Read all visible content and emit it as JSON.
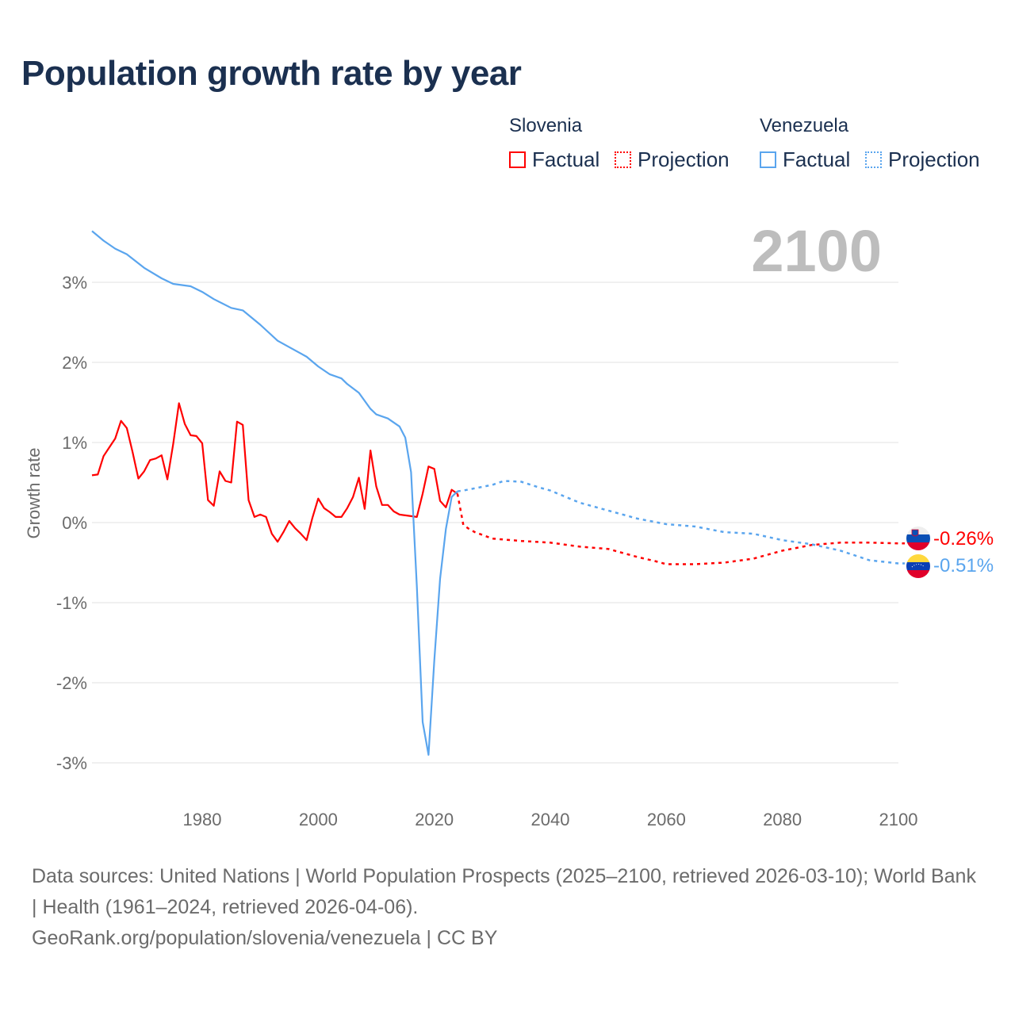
{
  "title": "Population growth rate by year",
  "legend": {
    "groups": [
      {
        "country": "Slovenia",
        "factual": "Factual",
        "projection": "Projection",
        "color": "#ff0000"
      },
      {
        "country": "Venezuela",
        "factual": "Factual",
        "projection": "Projection",
        "color": "#5aa5ee"
      }
    ]
  },
  "year_display": "2100",
  "footer": {
    "sources": "Data sources: United Nations | World Population Prospects (2025–2100, retrieved 2026-03-10); World Bank | Health (1961–2024, retrieved 2026-04-06).",
    "credit": "GeoRank.org/population/slovenia/venezuela | CC BY"
  },
  "chart_data": {
    "type": "line",
    "title": "Population growth rate by year",
    "xlabel": "",
    "ylabel": "Growth rate",
    "xlim": [
      1961,
      2100
    ],
    "ylim": [
      -3.4,
      3.7
    ],
    "xticks": [
      1980,
      2000,
      2020,
      2040,
      2060,
      2080,
      2100
    ],
    "xtick_labels": [
      "1980",
      "2000",
      "2020",
      "2040",
      "2060",
      "2080",
      "2100"
    ],
    "yticks": [
      3,
      2,
      1,
      0,
      -1,
      -2,
      -3
    ],
    "ytick_labels": [
      "3%",
      "2%",
      "1%",
      "0%",
      "-1%",
      "-2%",
      "-3%"
    ],
    "grid": true,
    "legend_position": "top-right",
    "series": [
      {
        "name": "Slovenia",
        "kind": "factual",
        "color": "#ff0000",
        "x": [
          1961,
          1962,
          1963,
          1964,
          1965,
          1966,
          1967,
          1968,
          1969,
          1970,
          1971,
          1972,
          1973,
          1974,
          1975,
          1976,
          1977,
          1978,
          1979,
          1980,
          1981,
          1982,
          1983,
          1984,
          1985,
          1986,
          1987,
          1988,
          1989,
          1990,
          1991,
          1992,
          1993,
          1994,
          1995,
          1996,
          1997,
          1998,
          1999,
          2000,
          2001,
          2002,
          2003,
          2004,
          2005,
          2006,
          2007,
          2008,
          2009,
          2010,
          2011,
          2012,
          2013,
          2014,
          2015,
          2016,
          2017,
          2018,
          2019,
          2020,
          2021,
          2022,
          2023,
          2024
        ],
        "y": [
          0.59,
          0.6,
          0.83,
          0.94,
          1.05,
          1.27,
          1.18,
          0.88,
          0.55,
          0.64,
          0.78,
          0.8,
          0.84,
          0.54,
          0.98,
          1.49,
          1.23,
          1.09,
          1.08,
          0.99,
          0.28,
          0.21,
          0.64,
          0.52,
          0.5,
          1.26,
          1.22,
          0.28,
          0.07,
          0.1,
          0.07,
          -0.14,
          -0.24,
          -0.12,
          0.02,
          -0.07,
          -0.14,
          -0.22,
          0.06,
          0.3,
          0.18,
          0.13,
          0.07,
          0.07,
          0.18,
          0.32,
          0.56,
          0.17,
          0.9,
          0.45,
          0.22,
          0.22,
          0.14,
          0.1,
          0.09,
          0.08,
          0.07,
          0.36,
          0.7,
          0.67,
          0.27,
          0.19,
          0.41,
          0.36
        ]
      },
      {
        "name": "Slovenia",
        "kind": "projection",
        "color": "#ff0000",
        "x": [
          2024,
          2025,
          2026,
          2027,
          2030,
          2035,
          2040,
          2045,
          2050,
          2055,
          2058,
          2060,
          2065,
          2070,
          2075,
          2080,
          2085,
          2090,
          2095,
          2100
        ],
        "y": [
          0.36,
          -0.03,
          -0.08,
          -0.12,
          -0.2,
          -0.23,
          -0.25,
          -0.3,
          -0.33,
          -0.43,
          -0.48,
          -0.52,
          -0.52,
          -0.5,
          -0.45,
          -0.35,
          -0.28,
          -0.25,
          -0.25,
          -0.26
        ],
        "end_label": "-0.26%"
      },
      {
        "name": "Venezuela",
        "kind": "factual",
        "color": "#5aa5ee",
        "x": [
          1961,
          1963,
          1965,
          1967,
          1970,
          1973,
          1975,
          1978,
          1980,
          1982,
          1985,
          1987,
          1990,
          1993,
          1995,
          1998,
          2000,
          2002,
          2004,
          2005,
          2007,
          2009,
          2010,
          2012,
          2014,
          2015,
          2016,
          2017,
          2018,
          2019,
          2020,
          2021,
          2022,
          2023,
          2024
        ],
        "y": [
          3.64,
          3.52,
          3.42,
          3.35,
          3.18,
          3.05,
          2.98,
          2.95,
          2.88,
          2.79,
          2.68,
          2.65,
          2.47,
          2.27,
          2.19,
          2.07,
          1.95,
          1.85,
          1.8,
          1.73,
          1.62,
          1.42,
          1.35,
          1.3,
          1.2,
          1.06,
          0.63,
          -0.8,
          -2.49,
          -2.9,
          -1.72,
          -0.7,
          -0.08,
          0.32,
          0.39
        ]
      },
      {
        "name": "Venezuela",
        "kind": "projection",
        "color": "#5aa5ee",
        "x": [
          2024,
          2025,
          2030,
          2032,
          2035,
          2038,
          2040,
          2045,
          2050,
          2055,
          2060,
          2065,
          2070,
          2075,
          2080,
          2085,
          2090,
          2095,
          2100
        ],
        "y": [
          0.39,
          0.4,
          0.47,
          0.52,
          0.51,
          0.44,
          0.4,
          0.25,
          0.15,
          0.05,
          -0.02,
          -0.05,
          -0.12,
          -0.14,
          -0.22,
          -0.27,
          -0.35,
          -0.47,
          -0.51
        ],
        "end_label": "-0.51%"
      }
    ]
  }
}
